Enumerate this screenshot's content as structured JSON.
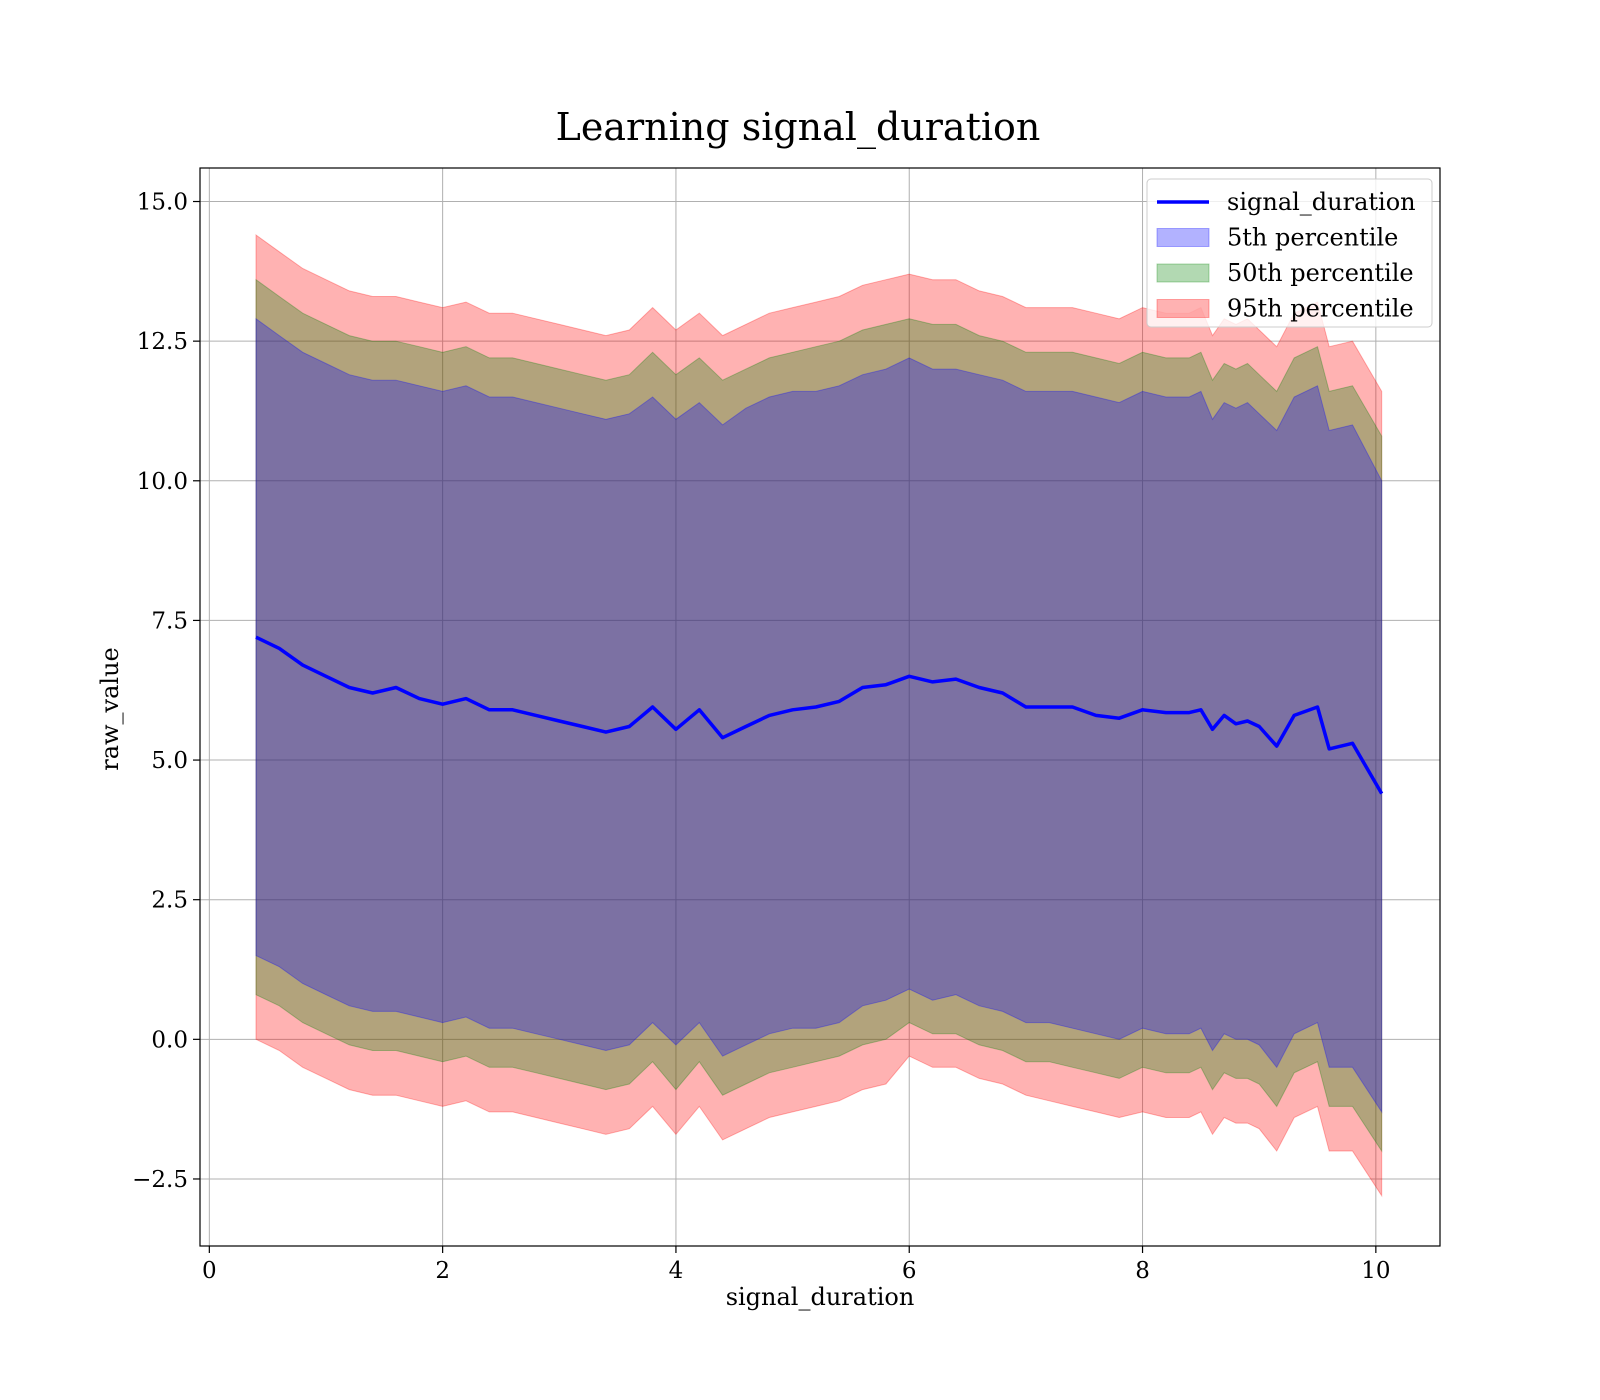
{
  "chart_data": {
    "type": "area",
    "title": "Learning signal_duration",
    "xlabel": "signal_duration",
    "ylabel": "raw_value",
    "xlim": [
      -0.08,
      10.55
    ],
    "ylim": [
      -3.7,
      15.6
    ],
    "x_ticks": [
      0,
      2,
      4,
      6,
      8,
      10
    ],
    "y_ticks": [
      -2.5,
      0.0,
      2.5,
      5.0,
      7.5,
      10.0,
      12.5,
      15.0
    ],
    "x_tick_labels": [
      "0",
      "2",
      "4",
      "6",
      "8",
      "10"
    ],
    "y_tick_labels": [
      "−2.5",
      "0.0",
      "2.5",
      "5.0",
      "7.5",
      "10.0",
      "12.5",
      "15.0"
    ],
    "grid": true,
    "legend_position": "top-right",
    "legend": [
      "signal_duration",
      "5th percentile",
      "50th percentile",
      "95th percentile"
    ],
    "x": [
      0.4,
      0.6,
      0.8,
      1.0,
      1.2,
      1.4,
      1.6,
      1.8,
      2.0,
      2.2,
      2.4,
      2.6,
      2.8,
      3.0,
      3.2,
      3.4,
      3.6,
      3.8,
      4.0,
      4.2,
      4.4,
      4.6,
      4.8,
      5.0,
      5.2,
      5.4,
      5.6,
      5.8,
      6.0,
      6.2,
      6.4,
      6.6,
      6.8,
      7.0,
      7.2,
      7.4,
      7.6,
      7.8,
      8.0,
      8.2,
      8.4,
      8.5,
      8.6,
      8.7,
      8.8,
      8.9,
      9.0,
      9.15,
      9.3,
      9.5,
      9.6,
      9.8,
      10.05
    ],
    "series": [
      {
        "name": "signal_duration",
        "kind": "line",
        "color": "#0000ff",
        "values": [
          7.2,
          7.0,
          6.7,
          6.5,
          6.3,
          6.2,
          6.3,
          6.1,
          6.0,
          6.1,
          5.9,
          5.9,
          5.8,
          5.7,
          5.6,
          5.5,
          5.6,
          5.95,
          5.55,
          5.9,
          5.4,
          5.6,
          5.8,
          5.9,
          5.95,
          6.05,
          6.3,
          6.35,
          6.5,
          6.4,
          6.45,
          6.3,
          6.2,
          5.95,
          5.95,
          5.95,
          5.8,
          5.75,
          5.9,
          5.85,
          5.85,
          5.9,
          5.55,
          5.8,
          5.65,
          5.7,
          5.6,
          5.25,
          5.8,
          5.95,
          5.2,
          5.3,
          4.4
        ]
      },
      {
        "name": "5th percentile",
        "kind": "band",
        "color": "#0000ff",
        "opacity": 0.3,
        "upper": [
          12.9,
          12.6,
          12.3,
          12.1,
          11.9,
          11.8,
          11.8,
          11.7,
          11.6,
          11.7,
          11.5,
          11.5,
          11.4,
          11.3,
          11.2,
          11.1,
          11.2,
          11.5,
          11.1,
          11.4,
          11.0,
          11.3,
          11.5,
          11.6,
          11.6,
          11.7,
          11.9,
          12.0,
          12.2,
          12.0,
          12.0,
          11.9,
          11.8,
          11.6,
          11.6,
          11.6,
          11.5,
          11.4,
          11.6,
          11.5,
          11.5,
          11.6,
          11.1,
          11.4,
          11.3,
          11.4,
          11.2,
          10.9,
          11.5,
          11.7,
          10.9,
          11.0,
          10.0
        ],
        "lower": [
          1.5,
          1.3,
          1.0,
          0.8,
          0.6,
          0.5,
          0.5,
          0.4,
          0.3,
          0.4,
          0.2,
          0.2,
          0.1,
          0.0,
          -0.1,
          -0.2,
          -0.1,
          0.3,
          -0.1,
          0.3,
          -0.3,
          -0.1,
          0.1,
          0.2,
          0.2,
          0.3,
          0.6,
          0.7,
          0.9,
          0.7,
          0.8,
          0.6,
          0.5,
          0.3,
          0.3,
          0.2,
          0.1,
          0.0,
          0.2,
          0.1,
          0.1,
          0.2,
          -0.2,
          0.1,
          0.0,
          0.0,
          -0.1,
          -0.5,
          0.1,
          0.3,
          -0.5,
          -0.5,
          -1.3
        ]
      },
      {
        "name": "50th percentile",
        "kind": "band",
        "color": "#008000",
        "opacity": 0.3,
        "upper": [
          13.6,
          13.3,
          13.0,
          12.8,
          12.6,
          12.5,
          12.5,
          12.4,
          12.3,
          12.4,
          12.2,
          12.2,
          12.1,
          12.0,
          11.9,
          11.8,
          11.9,
          12.3,
          11.9,
          12.2,
          11.8,
          12.0,
          12.2,
          12.3,
          12.4,
          12.5,
          12.7,
          12.8,
          12.9,
          12.8,
          12.8,
          12.6,
          12.5,
          12.3,
          12.3,
          12.3,
          12.2,
          12.1,
          12.3,
          12.2,
          12.2,
          12.3,
          11.8,
          12.1,
          12.0,
          12.1,
          11.9,
          11.6,
          12.2,
          12.4,
          11.6,
          11.7,
          10.8
        ],
        "lower": [
          0.8,
          0.6,
          0.3,
          0.1,
          -0.1,
          -0.2,
          -0.2,
          -0.3,
          -0.4,
          -0.3,
          -0.5,
          -0.5,
          -0.6,
          -0.7,
          -0.8,
          -0.9,
          -0.8,
          -0.4,
          -0.9,
          -0.4,
          -1.0,
          -0.8,
          -0.6,
          -0.5,
          -0.4,
          -0.3,
          -0.1,
          0.0,
          0.3,
          0.1,
          0.1,
          -0.1,
          -0.2,
          -0.4,
          -0.4,
          -0.5,
          -0.6,
          -0.7,
          -0.5,
          -0.6,
          -0.6,
          -0.5,
          -0.9,
          -0.6,
          -0.7,
          -0.7,
          -0.8,
          -1.2,
          -0.6,
          -0.4,
          -1.2,
          -1.2,
          -2.0
        ]
      },
      {
        "name": "95th percentile",
        "kind": "band",
        "color": "#ff0000",
        "opacity": 0.3,
        "upper": [
          14.4,
          14.1,
          13.8,
          13.6,
          13.4,
          13.3,
          13.3,
          13.2,
          13.1,
          13.2,
          13.0,
          13.0,
          12.9,
          12.8,
          12.7,
          12.6,
          12.7,
          13.1,
          12.7,
          13.0,
          12.6,
          12.8,
          13.0,
          13.1,
          13.2,
          13.3,
          13.5,
          13.6,
          13.7,
          13.6,
          13.6,
          13.4,
          13.3,
          13.1,
          13.1,
          13.1,
          13.0,
          12.9,
          13.1,
          13.0,
          13.0,
          13.1,
          12.6,
          12.9,
          12.8,
          12.9,
          12.7,
          12.4,
          13.0,
          13.2,
          12.4,
          12.5,
          11.6
        ],
        "lower": [
          0.0,
          -0.2,
          -0.5,
          -0.7,
          -0.9,
          -1.0,
          -1.0,
          -1.1,
          -1.2,
          -1.1,
          -1.3,
          -1.3,
          -1.4,
          -1.5,
          -1.6,
          -1.7,
          -1.6,
          -1.2,
          -1.7,
          -1.2,
          -1.8,
          -1.6,
          -1.4,
          -1.3,
          -1.2,
          -1.1,
          -0.9,
          -0.8,
          -0.3,
          -0.5,
          -0.5,
          -0.7,
          -0.8,
          -1.0,
          -1.1,
          -1.2,
          -1.3,
          -1.4,
          -1.3,
          -1.4,
          -1.4,
          -1.3,
          -1.7,
          -1.4,
          -1.5,
          -1.5,
          -1.6,
          -2.0,
          -1.4,
          -1.2,
          -2.0,
          -2.0,
          -2.8
        ]
      }
    ]
  }
}
